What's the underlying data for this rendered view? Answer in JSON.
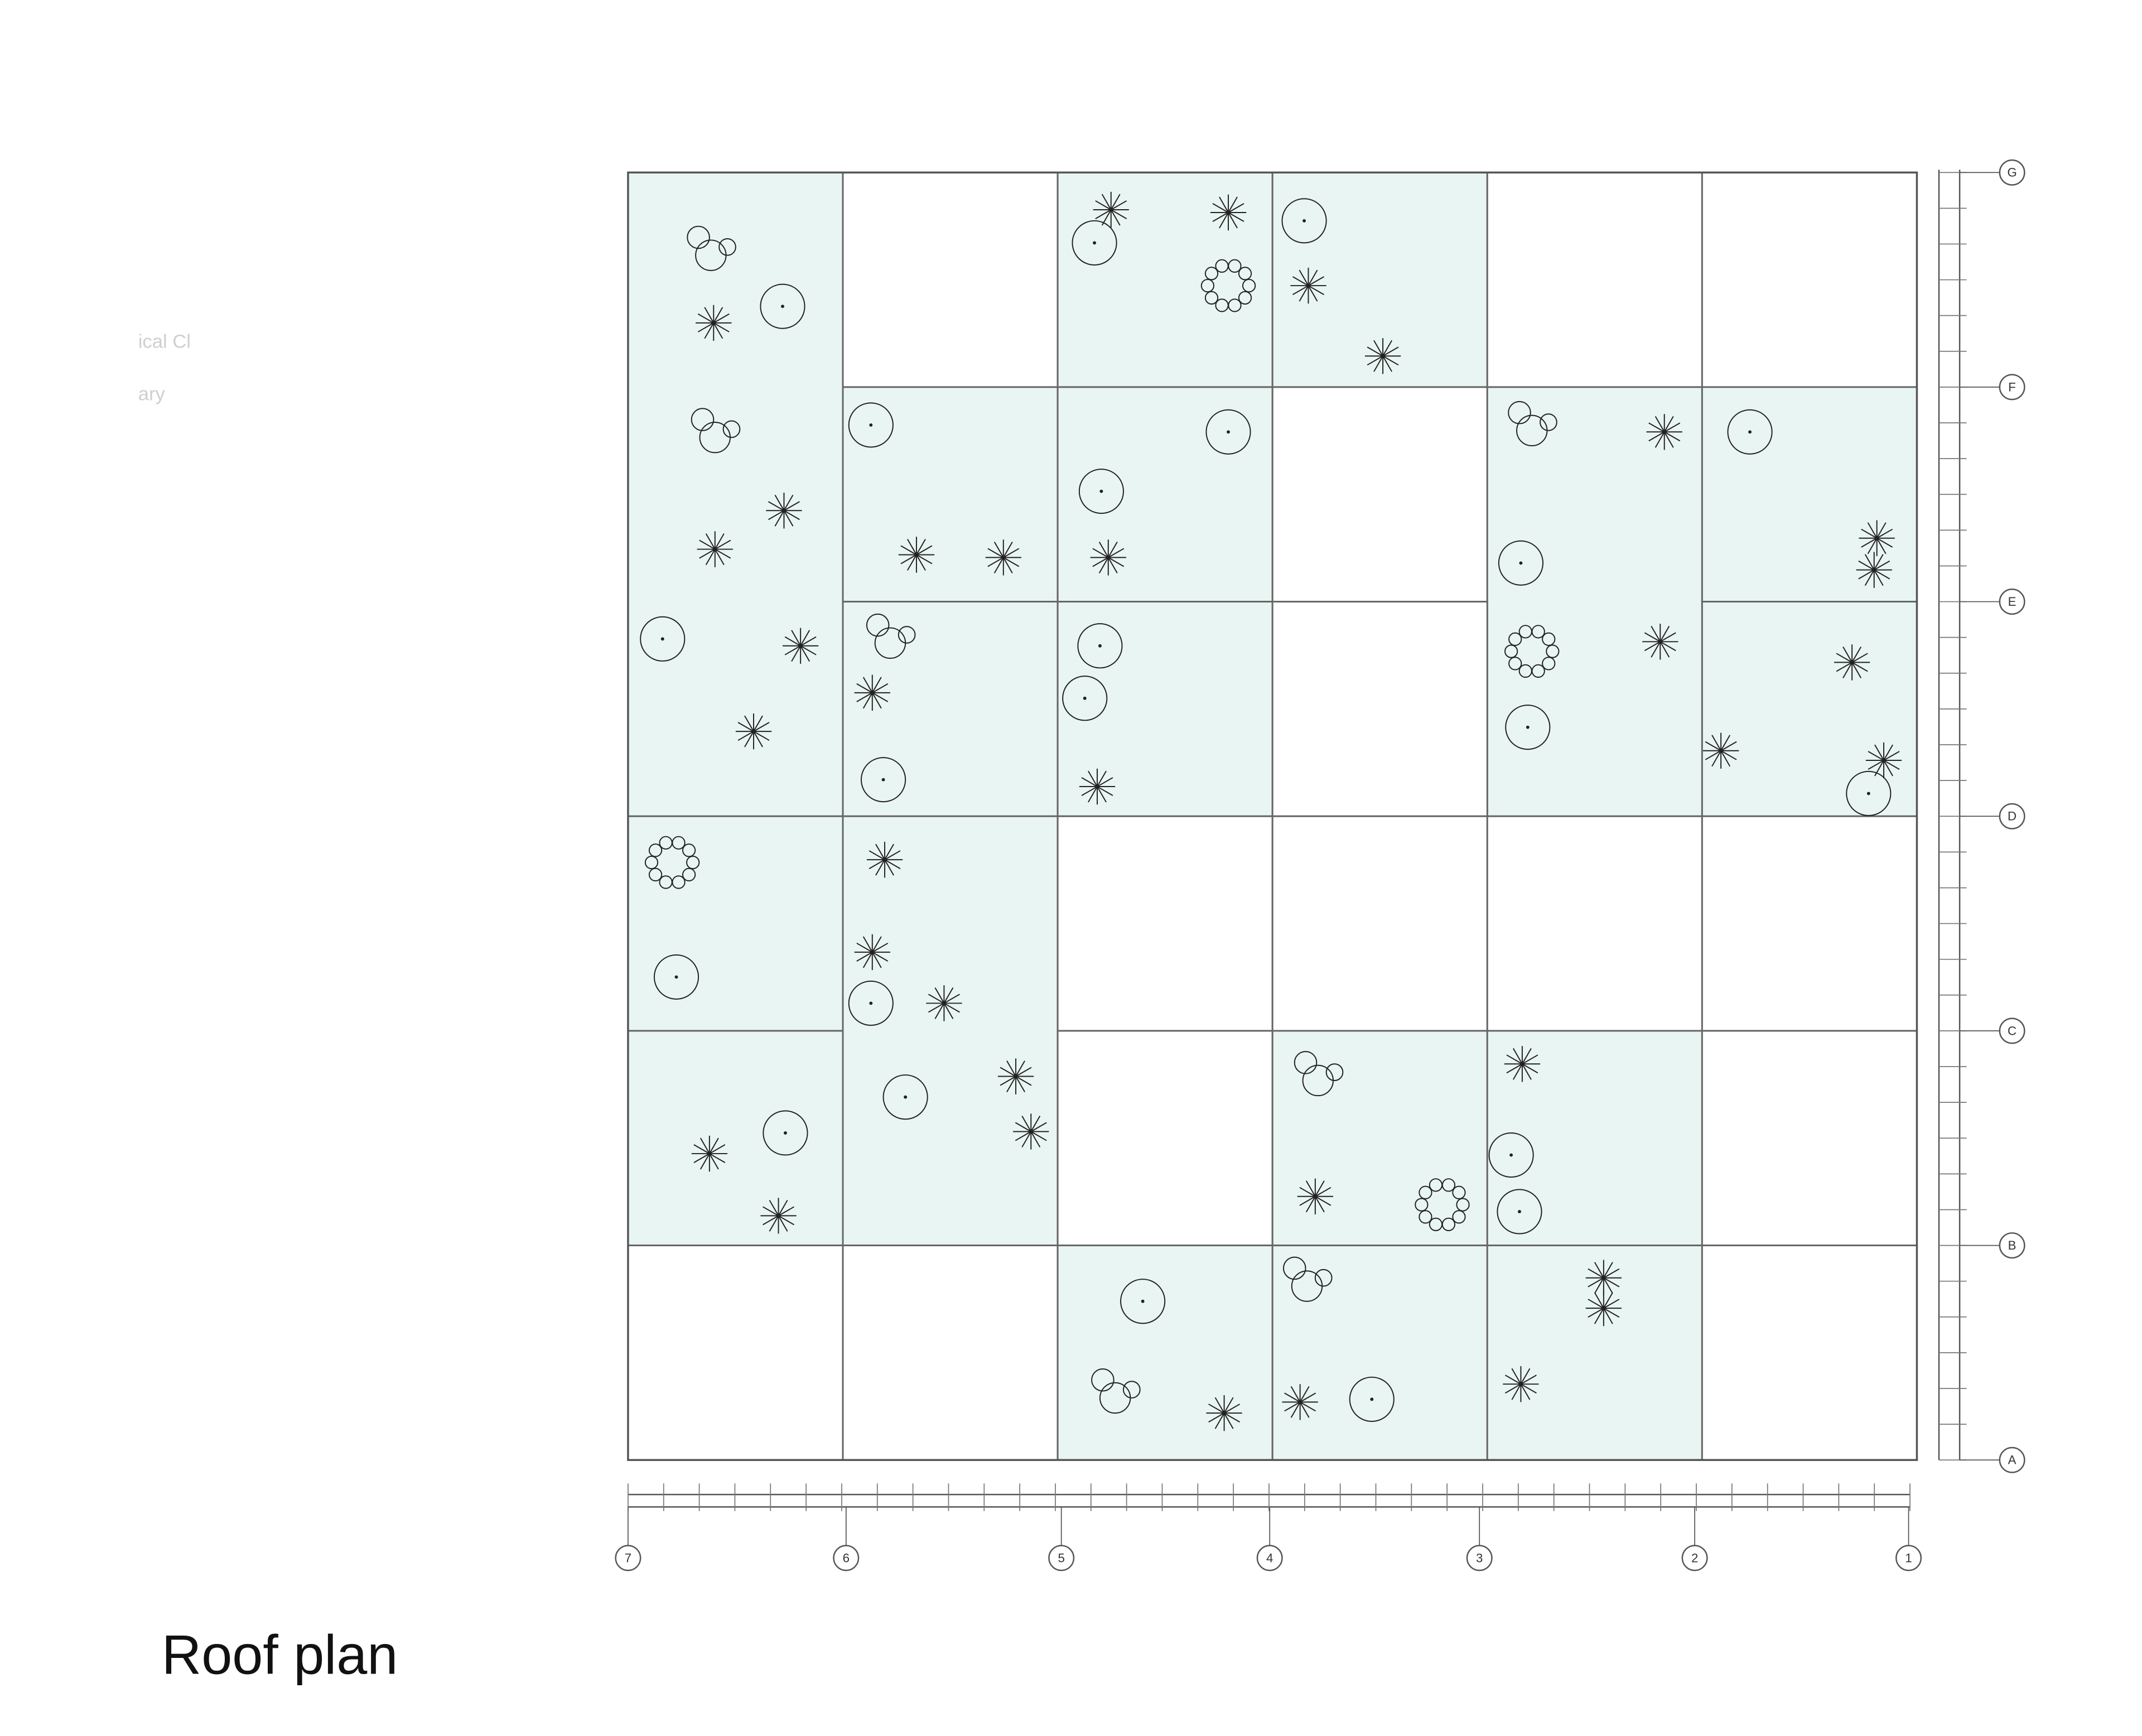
{
  "header": {
    "title": "Roof plan"
  },
  "sidebar": {
    "lines": [
      "ical Cl",
      "ary"
    ]
  },
  "grid": {
    "rows": [
      "G",
      "F",
      "E",
      "D",
      "C",
      "B",
      "A"
    ],
    "columns": [
      "7",
      "6",
      "5",
      "4",
      "3",
      "2",
      "1"
    ]
  }
}
